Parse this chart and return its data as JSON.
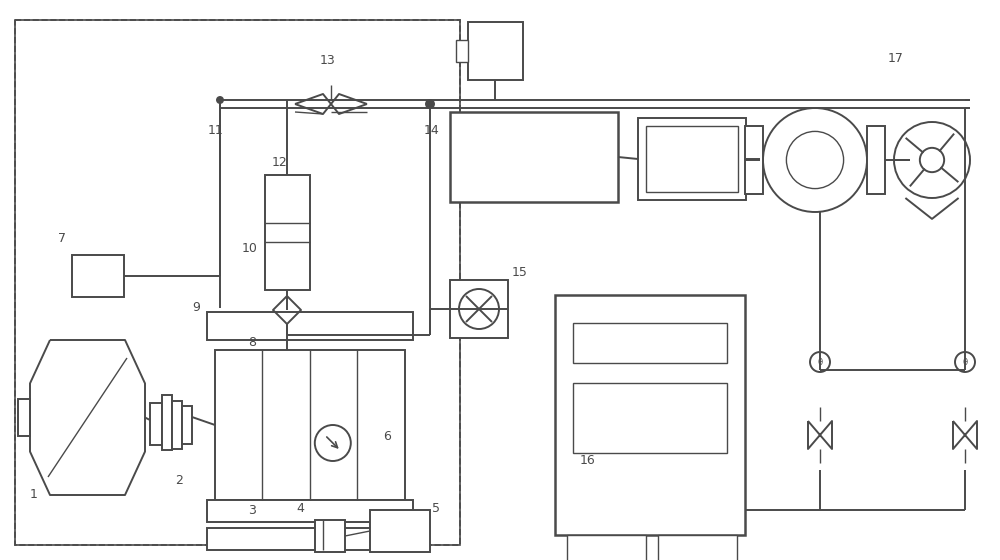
{
  "bg_color": "#ffffff",
  "line_color": "#4a4a4a",
  "lw": 1.4,
  "lw_thin": 1.0,
  "lw_thick": 1.8
}
